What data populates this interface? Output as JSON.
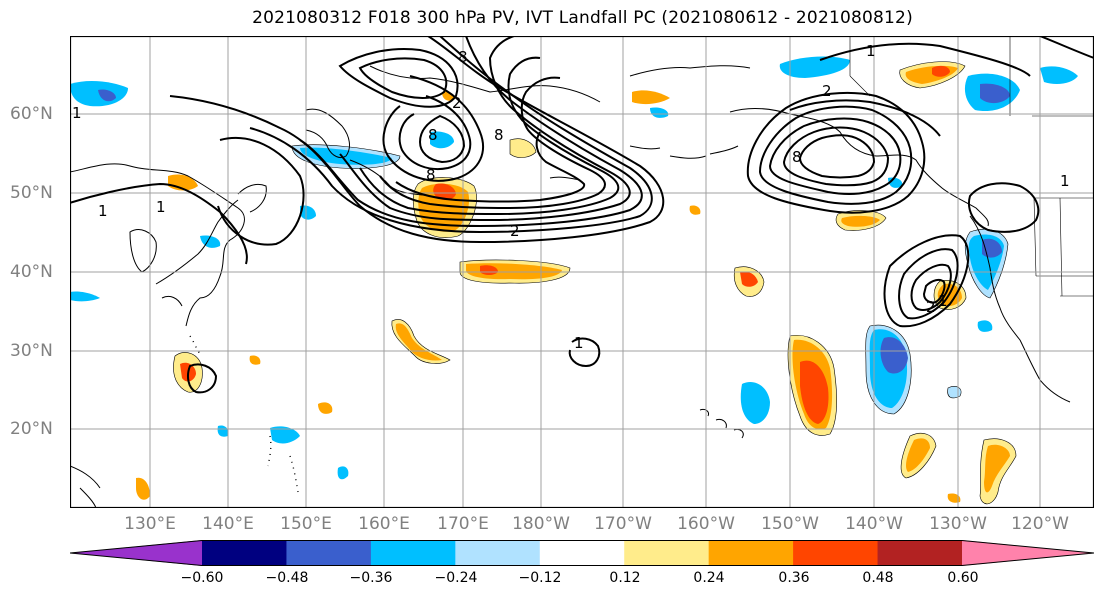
{
  "title": "2021080312 F018 300 hPa PV, IVT Landfall PC (2021080612 - 2021080812)",
  "map": {
    "lat_labels": [
      "60°N",
      "50°N",
      "40°N",
      "30°N",
      "20°N"
    ],
    "lon_labels": [
      "130°E",
      "140°E",
      "150°E",
      "160°E",
      "170°E",
      "180°W",
      "170°W",
      "160°W",
      "150°W",
      "140°W",
      "130°W",
      "120°W"
    ],
    "contour_labels": [
      "1",
      "1",
      "1",
      "2",
      "2",
      "8",
      "8",
      "8",
      "8",
      "2",
      "8",
      "1",
      "1",
      "1",
      "2",
      "1"
    ]
  },
  "colorbar": {
    "ticks": [
      "−0.60",
      "−0.48",
      "−0.36",
      "−0.24",
      "−0.12",
      "0.12",
      "0.24",
      "0.36",
      "0.48",
      "0.60"
    ],
    "colors": [
      "#9932cc",
      "#000080",
      "#3a5fcd",
      "#00bfff",
      "#b0e2ff",
      "#ffffff",
      "#ffec8b",
      "#ffa500",
      "#ff4500",
      "#b22222",
      "#ff82ab"
    ]
  }
}
